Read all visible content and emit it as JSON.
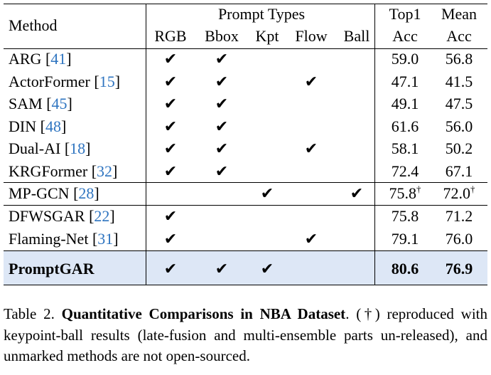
{
  "table": {
    "header": {
      "method": "Method",
      "prompt_types": "Prompt Types",
      "prompt_columns": [
        "RGB",
        "Bbox",
        "Kpt",
        "Flow",
        "Ball"
      ],
      "top1": [
        "Top1",
        "Acc"
      ],
      "mean": [
        "Mean",
        "Acc"
      ]
    },
    "check": "✔",
    "cite_open": "[",
    "cite_close": "]",
    "rows": [
      {
        "method": "ARG",
        "ref": "41",
        "prompts": [
          true,
          true,
          false,
          false,
          false
        ],
        "top1": "59.0",
        "mean": "56.8"
      },
      {
        "method": "ActorFormer",
        "ref": "15",
        "prompts": [
          true,
          true,
          false,
          true,
          false
        ],
        "top1": "47.1",
        "mean": "41.5"
      },
      {
        "method": "SAM",
        "ref": "45",
        "prompts": [
          true,
          true,
          false,
          false,
          false
        ],
        "top1": "49.1",
        "mean": "47.5"
      },
      {
        "method": "DIN",
        "ref": "48",
        "prompts": [
          true,
          true,
          false,
          false,
          false
        ],
        "top1": "61.6",
        "mean": "56.0"
      },
      {
        "method": "Dual-AI",
        "ref": "18",
        "prompts": [
          true,
          true,
          false,
          true,
          false
        ],
        "top1": "58.1",
        "mean": "50.2"
      },
      {
        "method": "KRGFormer",
        "ref": "32",
        "prompts": [
          true,
          true,
          false,
          false,
          false
        ],
        "top1": "72.4",
        "mean": "67.1"
      },
      {
        "method": "MP-GCN",
        "ref": "28",
        "prompts": [
          false,
          false,
          true,
          false,
          true
        ],
        "top1": "75.8",
        "mean": "72.0",
        "mark": "†"
      },
      {
        "method": "DFWSGAR",
        "ref": "22",
        "prompts": [
          true,
          false,
          false,
          false,
          false
        ],
        "top1": "75.8",
        "mean": "71.2"
      },
      {
        "method": "Flaming-Net",
        "ref": "31",
        "prompts": [
          true,
          false,
          false,
          true,
          false
        ],
        "top1": "79.1",
        "mean": "76.0"
      },
      {
        "method": "PromptGAR",
        "prompts": [
          true,
          true,
          true,
          false,
          false
        ],
        "top1": "80.6",
        "mean": "76.9",
        "highlight": true
      }
    ]
  },
  "caption": {
    "label": "Table 2.",
    "title": "Quantitative Comparisons in NBA Dataset",
    "text": ". (†) reproduced with keypoint-ball results (late-fusion and multi-ensemble parts un-released), and unmarked methods are not open-sourced."
  }
}
